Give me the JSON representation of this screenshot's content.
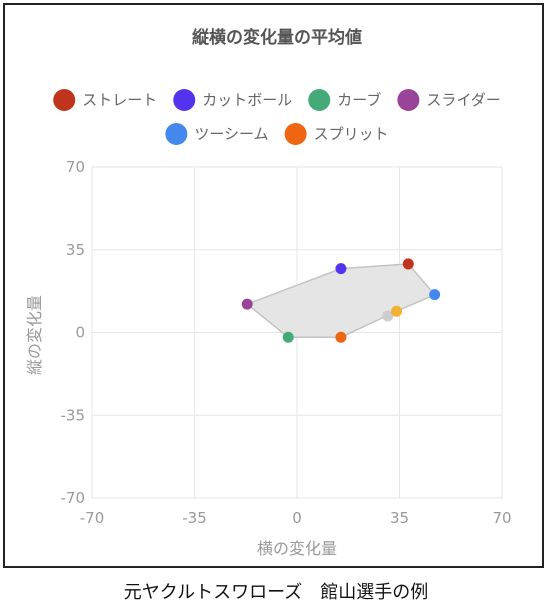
{
  "caption": "元ヤクルトスワローズ　館山選手の例",
  "chart_data": {
    "type": "scatter",
    "title": "縦横の変化量の平均値",
    "xlabel": "横の変化量",
    "ylabel": "縦の変化量",
    "xlim": [
      -70,
      70
    ],
    "ylim": [
      -70,
      70
    ],
    "xticks": [
      "-70",
      "-35",
      "0",
      "35",
      "70"
    ],
    "yticks": [
      "70",
      "35",
      "0",
      "-35",
      "-70"
    ],
    "grid": true,
    "legend_position": "top",
    "series": [
      {
        "name": "ストレート",
        "color": "#c0341d",
        "x": 38,
        "y": 29
      },
      {
        "name": "カットボール",
        "color": "#5533ee",
        "x": 15,
        "y": 27
      },
      {
        "name": "カーブ",
        "color": "#44aa77",
        "x": -3,
        "y": -2
      },
      {
        "name": "スライダー",
        "color": "#994499",
        "x": -17,
        "y": 12
      },
      {
        "name": "ツーシーム",
        "color": "#4488ee",
        "x": 47,
        "y": 16
      },
      {
        "name": "スプリット",
        "color": "#ee6611",
        "x": 15,
        "y": -2
      }
    ],
    "extra_points": [
      {
        "color": "#cccccc",
        "x": 31,
        "y": 7
      },
      {
        "color": "#f2b134",
        "x": 34,
        "y": 9
      }
    ],
    "hull_order": [
      {
        "x": -17,
        "y": 12
      },
      {
        "x": 15,
        "y": 27
      },
      {
        "x": 38,
        "y": 29
      },
      {
        "x": 47,
        "y": 16
      },
      {
        "x": 34,
        "y": 9
      },
      {
        "x": 15,
        "y": -2
      },
      {
        "x": -3,
        "y": -2
      }
    ]
  }
}
